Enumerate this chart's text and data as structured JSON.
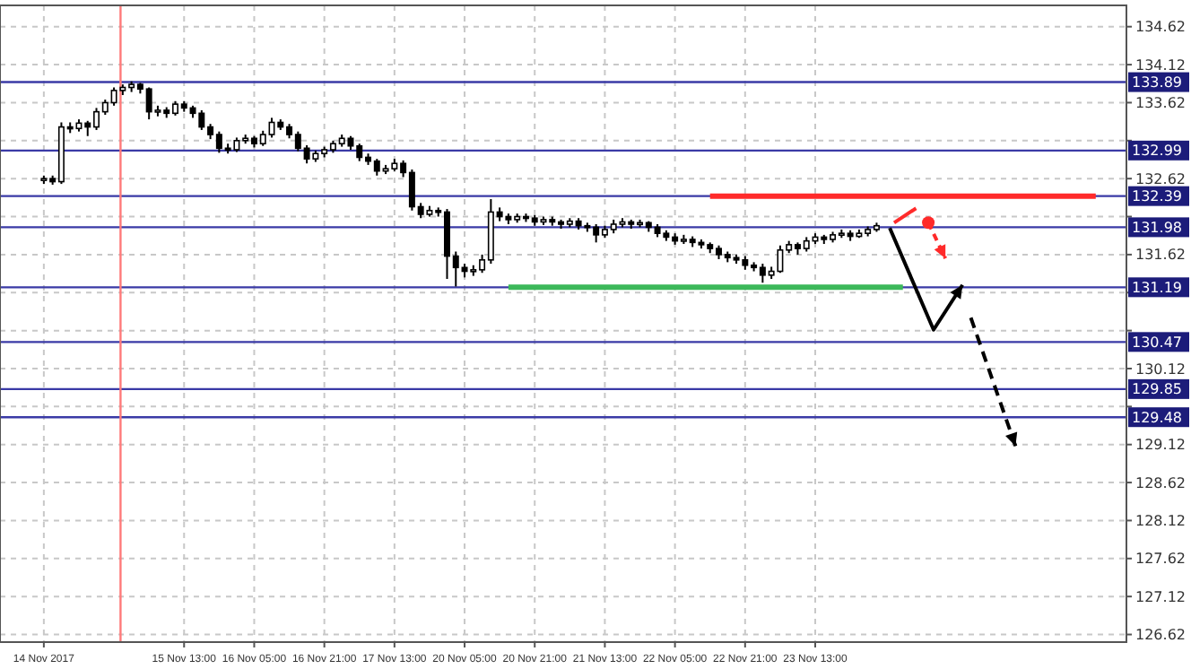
{
  "chart_data": {
    "type": "candlestick",
    "color": "#000000",
    "categories": [
      "14 Nov 2017",
      null,
      null,
      null,
      null,
      null,
      null,
      null,
      null,
      null,
      null,
      null,
      null,
      null,
      null,
      null,
      "15 Nov 13:00",
      null,
      null,
      null,
      null,
      null,
      null,
      null,
      "16 Nov 05:00",
      null,
      null,
      null,
      null,
      null,
      null,
      null,
      "16 Nov 21:00",
      null,
      null,
      null,
      null,
      null,
      null,
      null,
      "17 Nov 13:00",
      null,
      null,
      null,
      null,
      null,
      null,
      null,
      "20 Nov 05:00",
      null,
      null,
      null,
      null,
      null,
      null,
      null,
      "20 Nov 21:00",
      null,
      null,
      null,
      null,
      null,
      null,
      null,
      "21 Nov 13:00",
      null,
      null,
      null,
      null,
      null,
      null,
      null,
      "22 Nov 05:00",
      null,
      null,
      null,
      null,
      null,
      null,
      null,
      "22 Nov 21:00",
      null,
      null,
      null,
      null,
      null,
      null,
      null,
      "23 Nov 13:00",
      null,
      null,
      null,
      null,
      null,
      null,
      null,
      null,
      null,
      null,
      null,
      null,
      null,
      null,
      null,
      null,
      null,
      null,
      null,
      null,
      null,
      null,
      null,
      null,
      null,
      null,
      null,
      null,
      null,
      null,
      null,
      null,
      null,
      null,
      null
    ],
    "ohlc": [
      [
        132.6,
        132.66,
        132.55,
        132.62
      ],
      [
        132.62,
        132.66,
        132.54,
        132.58
      ],
      [
        132.58,
        133.36,
        132.55,
        133.3
      ],
      [
        133.3,
        133.36,
        133.22,
        133.28
      ],
      [
        133.28,
        133.4,
        133.24,
        133.35
      ],
      [
        133.35,
        133.38,
        133.18,
        133.3
      ],
      [
        133.3,
        133.55,
        133.26,
        133.5
      ],
      [
        133.5,
        133.66,
        133.46,
        133.62
      ],
      [
        133.62,
        133.82,
        133.58,
        133.78
      ],
      [
        133.78,
        133.86,
        133.72,
        133.82
      ],
      [
        133.82,
        133.9,
        133.76,
        133.86
      ],
      [
        133.86,
        133.88,
        133.74,
        133.8
      ],
      [
        133.8,
        133.82,
        133.4,
        133.5
      ],
      [
        133.5,
        133.58,
        133.44,
        133.52
      ],
      [
        133.52,
        133.56,
        133.42,
        133.48
      ],
      [
        133.48,
        133.64,
        133.45,
        133.6
      ],
      [
        133.6,
        133.64,
        133.5,
        133.55
      ],
      [
        133.55,
        133.58,
        133.42,
        133.48
      ],
      [
        133.48,
        133.52,
        133.26,
        133.3
      ],
      [
        133.3,
        133.34,
        133.14,
        133.2
      ],
      [
        133.2,
        133.24,
        132.96,
        133.02
      ],
      [
        133.02,
        133.08,
        132.95,
        133.0
      ],
      [
        133.0,
        133.16,
        132.97,
        133.12
      ],
      [
        133.12,
        133.2,
        133.08,
        133.15
      ],
      [
        133.15,
        133.18,
        133.03,
        133.08
      ],
      [
        133.08,
        133.25,
        133.05,
        133.2
      ],
      [
        133.2,
        133.42,
        133.16,
        133.36
      ],
      [
        133.36,
        133.4,
        133.26,
        133.3
      ],
      [
        133.3,
        133.34,
        133.15,
        133.2
      ],
      [
        133.2,
        133.24,
        132.98,
        133.02
      ],
      [
        133.02,
        133.06,
        132.82,
        132.88
      ],
      [
        132.88,
        132.99,
        132.84,
        132.95
      ],
      [
        132.95,
        133.04,
        132.9,
        133.0
      ],
      [
        133.0,
        133.12,
        132.96,
        133.08
      ],
      [
        133.08,
        133.2,
        133.04,
        133.15
      ],
      [
        133.15,
        133.18,
        133.0,
        133.05
      ],
      [
        133.05,
        133.08,
        132.85,
        132.9
      ],
      [
        132.9,
        132.95,
        132.8,
        132.85
      ],
      [
        132.85,
        132.88,
        132.66,
        132.72
      ],
      [
        132.72,
        132.8,
        132.68,
        132.75
      ],
      [
        132.75,
        132.88,
        132.72,
        132.82
      ],
      [
        132.82,
        132.86,
        132.64,
        132.7
      ],
      [
        132.7,
        132.74,
        132.2,
        132.25
      ],
      [
        132.25,
        132.3,
        132.1,
        132.15
      ],
      [
        132.15,
        132.26,
        132.12,
        132.2
      ],
      [
        132.2,
        132.24,
        132.12,
        132.18
      ],
      [
        132.18,
        132.22,
        131.3,
        131.6
      ],
      [
        131.6,
        131.66,
        131.2,
        131.45
      ],
      [
        131.45,
        131.5,
        131.32,
        131.4
      ],
      [
        131.4,
        131.48,
        131.34,
        131.42
      ],
      [
        131.42,
        131.62,
        131.38,
        131.55
      ],
      [
        131.55,
        132.35,
        131.5,
        132.18
      ],
      [
        132.18,
        132.24,
        132.06,
        132.12
      ],
      [
        132.12,
        132.16,
        132.02,
        132.08
      ],
      [
        132.08,
        132.16,
        132.04,
        132.12
      ],
      [
        132.12,
        132.16,
        132.05,
        132.1
      ],
      [
        132.1,
        132.14,
        132.0,
        132.05
      ],
      [
        132.05,
        132.12,
        132.01,
        132.08
      ],
      [
        132.08,
        132.12,
        132.0,
        132.05
      ],
      [
        132.05,
        132.08,
        131.96,
        132.02
      ],
      [
        132.02,
        132.1,
        131.98,
        132.06
      ],
      [
        132.06,
        132.1,
        131.95,
        132.0
      ],
      [
        132.0,
        132.04,
        131.92,
        131.98
      ],
      [
        131.98,
        132.02,
        131.78,
        131.88
      ],
      [
        131.88,
        132.0,
        131.84,
        131.95
      ],
      [
        131.95,
        132.08,
        131.9,
        132.02
      ],
      [
        132.02,
        132.1,
        131.98,
        132.05
      ],
      [
        132.05,
        132.08,
        131.96,
        132.02
      ],
      [
        132.02,
        132.08,
        131.98,
        132.04
      ],
      [
        132.04,
        132.06,
        131.92,
        131.98
      ],
      [
        131.98,
        132.02,
        131.85,
        131.9
      ],
      [
        131.9,
        131.94,
        131.8,
        131.85
      ],
      [
        131.85,
        131.9,
        131.75,
        131.8
      ],
      [
        131.8,
        131.88,
        131.76,
        131.82
      ],
      [
        131.82,
        131.86,
        131.72,
        131.78
      ],
      [
        131.78,
        131.82,
        131.7,
        131.75
      ],
      [
        131.75,
        131.78,
        131.64,
        131.7
      ],
      [
        131.7,
        131.74,
        131.56,
        131.62
      ],
      [
        131.62,
        131.66,
        131.52,
        131.58
      ],
      [
        131.58,
        131.62,
        131.5,
        131.55
      ],
      [
        131.55,
        131.6,
        131.42,
        131.48
      ],
      [
        131.48,
        131.52,
        131.4,
        131.45
      ],
      [
        131.45,
        131.5,
        131.25,
        131.35
      ],
      [
        131.35,
        131.46,
        131.3,
        131.4
      ],
      [
        131.4,
        131.74,
        131.38,
        131.68
      ],
      [
        131.68,
        131.8,
        131.64,
        131.75
      ],
      [
        131.75,
        131.78,
        131.62,
        131.7
      ],
      [
        131.7,
        131.85,
        131.66,
        131.8
      ],
      [
        131.8,
        131.9,
        131.76,
        131.85
      ],
      [
        131.85,
        131.88,
        131.76,
        131.82
      ],
      [
        131.82,
        131.92,
        131.78,
        131.88
      ],
      [
        131.88,
        131.95,
        131.84,
        131.9
      ],
      [
        131.9,
        131.94,
        131.8,
        131.86
      ],
      [
        131.86,
        131.95,
        131.84,
        131.9
      ],
      [
        131.9,
        131.99,
        131.86,
        131.95
      ],
      [
        131.95,
        132.04,
        131.92,
        132.0
      ],
      null,
      null,
      null,
      null,
      null,
      null,
      null,
      null,
      null,
      null,
      null,
      null,
      null,
      null,
      null,
      null,
      null,
      null,
      null,
      null,
      null,
      null,
      null,
      null,
      null,
      null,
      null,
      null
    ],
    "series": [
      {
        "type": "line",
        "color": "#ff2a2a",
        "values": [
          null,
          null,
          null,
          null,
          null,
          null,
          null,
          null,
          null,
          null,
          null,
          null,
          null,
          null,
          null,
          null,
          null,
          null,
          null,
          null,
          null,
          null,
          null,
          null,
          null,
          null,
          null,
          null,
          null,
          null,
          null,
          null,
          null,
          null,
          null,
          null,
          null,
          null,
          null,
          null,
          null,
          null,
          null,
          null,
          null,
          null,
          null,
          null,
          null,
          null,
          null,
          null,
          null,
          null,
          null,
          null,
          null,
          null,
          null,
          null,
          null,
          null,
          null,
          null,
          null,
          null,
          null,
          null,
          null,
          null,
          null,
          null,
          null,
          null,
          null,
          null,
          132.39,
          132.39,
          132.39,
          132.39,
          132.39,
          132.39,
          132.39,
          132.39,
          132.39,
          132.39,
          132.39,
          132.39,
          132.39,
          132.39,
          132.39,
          132.39,
          132.39,
          132.39,
          132.39,
          132.39,
          132.39,
          132.39,
          132.39,
          132.39,
          132.39,
          132.39,
          132.39,
          132.39,
          132.39,
          132.39,
          132.39,
          132.39,
          132.39,
          132.39,
          132.39,
          132.39,
          132.39,
          132.39,
          132.39,
          132.39,
          132.39,
          132.39,
          132.39,
          132.39,
          132.39,
          null,
          null,
          null
        ]
      },
      {
        "type": "line",
        "color": "#3cb85a",
        "values": [
          null,
          null,
          null,
          null,
          null,
          null,
          null,
          null,
          null,
          null,
          null,
          null,
          null,
          null,
          null,
          null,
          null,
          null,
          null,
          null,
          null,
          null,
          null,
          null,
          null,
          null,
          null,
          null,
          null,
          null,
          null,
          null,
          null,
          null,
          null,
          null,
          null,
          null,
          null,
          null,
          null,
          null,
          null,
          null,
          null,
          null,
          null,
          null,
          null,
          null,
          null,
          null,
          null,
          131.19,
          131.19,
          131.19,
          131.19,
          131.19,
          131.19,
          131.19,
          131.19,
          131.19,
          131.19,
          131.19,
          131.19,
          131.19,
          131.19,
          131.19,
          131.19,
          131.19,
          131.19,
          131.19,
          131.19,
          131.19,
          131.19,
          131.19,
          131.19,
          131.19,
          131.19,
          131.19,
          131.19,
          131.19,
          131.19,
          131.19,
          131.19,
          131.19,
          131.19,
          131.19,
          131.19,
          131.19,
          131.19,
          131.19,
          131.19,
          131.19,
          131.19,
          131.19,
          131.19,
          131.19,
          131.19,
          null,
          null,
          null,
          null,
          null,
          null,
          null,
          null,
          null,
          null,
          null,
          null,
          null,
          null,
          null,
          null,
          null,
          null,
          null,
          null,
          null,
          null,
          null,
          null,
          null
        ]
      }
    ],
    "ylim": [
      126.52,
      134.9
    ],
    "yticks": [
      126.62,
      127.12,
      127.62,
      128.12,
      128.62,
      129.12,
      {
        "value": 129.62,
        "label": null
      },
      130.12,
      {
        "value": 130.62,
        "label": null
      },
      {
        "value": 131.12,
        "label": null
      },
      131.62,
      {
        "value": 132.12,
        "label": null
      },
      132.62,
      {
        "value": 133.12,
        "label": null
      },
      133.62,
      134.12,
      134.62
    ],
    "grid": true,
    "ref_lines": [
      {
        "axis": "y",
        "value": 133.89,
        "label": "133.89",
        "color": "#3a3aa6"
      },
      {
        "axis": "y",
        "value": 132.99,
        "label": "132.99",
        "color": "#3a3aa6"
      },
      {
        "axis": "y",
        "value": 132.39,
        "label": "132.39",
        "color": "#3a3aa6"
      },
      {
        "axis": "y",
        "value": 131.98,
        "label": "131.98",
        "color": "#3a3aa6"
      },
      {
        "axis": "y",
        "value": 131.19,
        "label": "131.19",
        "color": "#3a3aa6"
      },
      {
        "axis": "y",
        "value": 130.47,
        "label": "130.47",
        "color": "#3a3aa6"
      },
      {
        "axis": "y",
        "value": 129.85,
        "label": "129.85",
        "color": "#3a3aa6"
      },
      {
        "axis": "y",
        "value": 129.48,
        "label": "129.48",
        "color": "#3a3aa6"
      }
    ]
  }
}
